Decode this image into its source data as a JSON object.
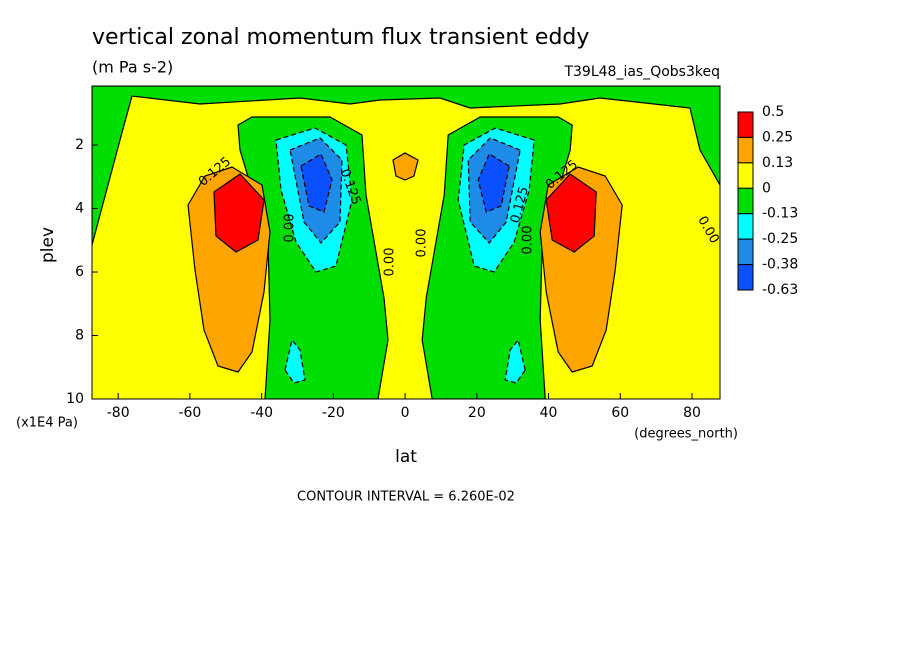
{
  "chart_data": {
    "type": "contour",
    "title": "vertical zonal momentum flux transient eddy",
    "subtitle": "(m Pa s-2)",
    "dataset": "T39L48_ias_Qobs3keq",
    "x_label": "lat",
    "x_units": "(degrees_north)",
    "y_label": "plev",
    "y_units": "(x1E4 Pa)",
    "footer": "CONTOUR INTERVAL = 6.260E-02",
    "xlim": [
      -87.3,
      87.8
    ],
    "xticks": [
      -80,
      -60,
      -40,
      -20,
      0,
      20,
      40,
      60,
      80
    ],
    "ylim": [
      10,
      0.14
    ],
    "yticks": [
      2,
      4,
      6,
      8,
      10
    ],
    "colorbar": {
      "levels": [
        0.5,
        0.25,
        0.13,
        0,
        -0.13,
        -0.25,
        -0.38,
        -0.63
      ],
      "colors": [
        "#ff0000",
        "#ffa500",
        "#ffff00",
        "#00dd00",
        "#00ffff",
        "#1e8ce6",
        "#0a50ff"
      ]
    },
    "contour_labels": [
      "0.125",
      "0.00",
      "0.125",
      "0.00",
      "0.00",
      "0.125",
      "0.00",
      "0.125",
      "0.00"
    ]
  }
}
